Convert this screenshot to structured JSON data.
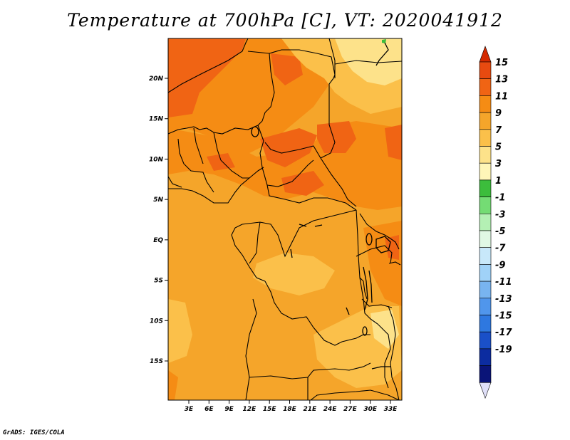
{
  "title": "Temperature at 700hPa [C], VT: 2020041912",
  "credit": "GrADS: IGES/COLA",
  "map": {
    "lon_ticks": [
      {
        "lon": 3,
        "label": "3E"
      },
      {
        "lon": 6,
        "label": "6E"
      },
      {
        "lon": 9,
        "label": "9E"
      },
      {
        "lon": 12,
        "label": "12E"
      },
      {
        "lon": 15,
        "label": "15E"
      },
      {
        "lon": 18,
        "label": "18E"
      },
      {
        "lon": 21,
        "label": "21E"
      },
      {
        "lon": 24,
        "label": "24E"
      },
      {
        "lon": 27,
        "label": "27E"
      },
      {
        "lon": 30,
        "label": "30E"
      },
      {
        "lon": 33,
        "label": "33E"
      }
    ],
    "lat_ticks": [
      {
        "lat": 20,
        "label": "20N"
      },
      {
        "lat": 15,
        "label": "15N"
      },
      {
        "lat": 10,
        "label": "10N"
      },
      {
        "lat": 5,
        "label": "5N"
      },
      {
        "lat": 0,
        "label": "EQ"
      },
      {
        "lat": -5,
        "label": "5S"
      },
      {
        "lat": -10,
        "label": "10S"
      },
      {
        "lat": -15,
        "label": "15S"
      }
    ]
  },
  "colorbar": {
    "top_arrow_color": "#d42a00",
    "bottom_arrow_color": "#e0e0f8",
    "bins": [
      {
        "label": "15",
        "color": "#e84a10"
      },
      {
        "label": "13",
        "color": "#f06414"
      },
      {
        "label": "11",
        "color": "#f58c14"
      },
      {
        "label": "9",
        "color": "#f5a52a"
      },
      {
        "label": "7",
        "color": "#fbc04a"
      },
      {
        "label": "5",
        "color": "#fde28a"
      },
      {
        "label": "3",
        "color": "#fff6b8"
      },
      {
        "label": "1",
        "color": "#3cbd3c"
      },
      {
        "label": "-1",
        "color": "#74dc74"
      },
      {
        "label": "-3",
        "color": "#b4f0b4"
      },
      {
        "label": "-5",
        "color": "#e0f8e4"
      },
      {
        "label": "-7",
        "color": "#c8e8fa"
      },
      {
        "label": "-9",
        "color": "#a0d2f8"
      },
      {
        "label": "-11",
        "color": "#78b4f0"
      },
      {
        "label": "-13",
        "color": "#5096ec"
      },
      {
        "label": "-15",
        "color": "#2e78e0"
      },
      {
        "label": "-17",
        "color": "#1a50c8"
      },
      {
        "label": "-19",
        "color": "#0c2ca0"
      },
      {
        "label": "",
        "color": "#0a1478"
      }
    ]
  }
}
